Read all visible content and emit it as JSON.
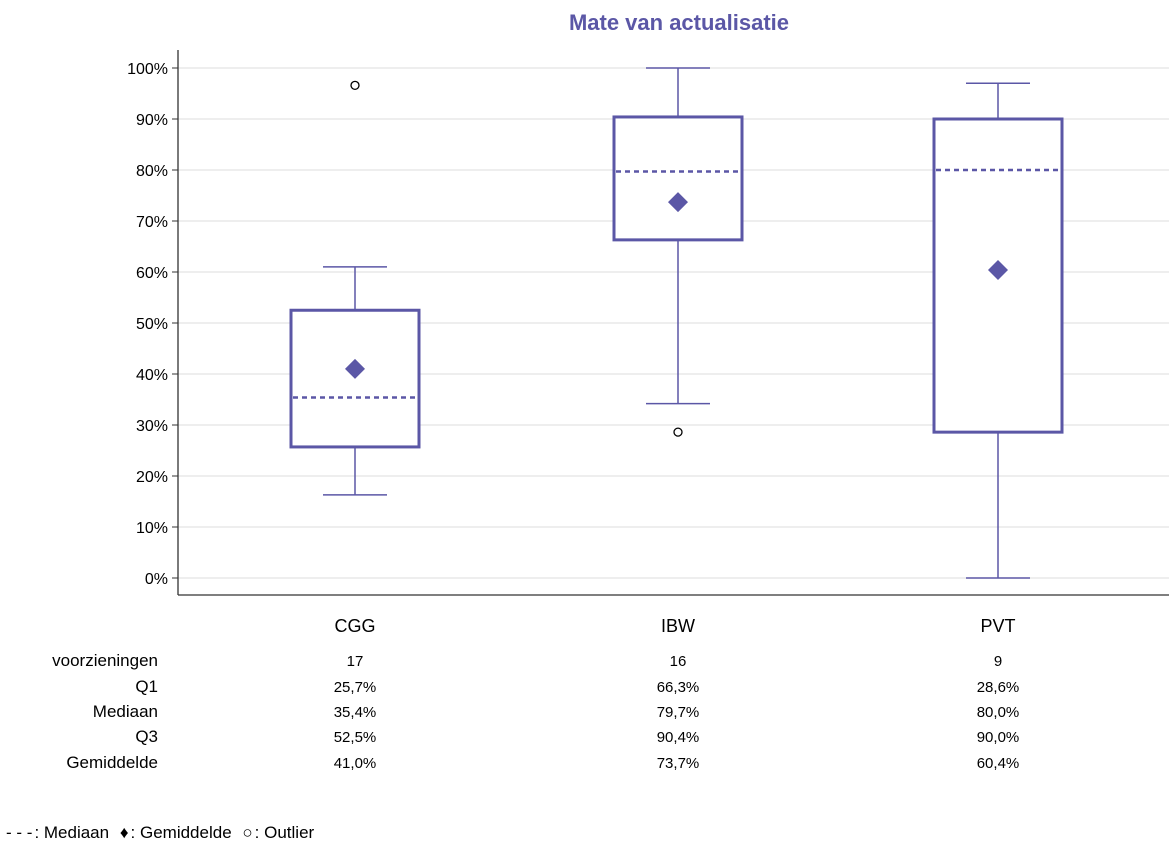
{
  "chart_data": {
    "type": "box",
    "title": "Mate van actualisatie",
    "xlabel": "",
    "ylabel": "",
    "ylim": [
      0,
      100
    ],
    "yticks": [
      "0%",
      "10%",
      "20%",
      "30%",
      "40%",
      "50%",
      "60%",
      "70%",
      "80%",
      "90%",
      "100%"
    ],
    "grid": true,
    "accent_color": "#5b57a6",
    "categories": [
      "CGG",
      "IBW",
      "PVT"
    ],
    "boxes": [
      {
        "category": "CGG",
        "whisker_low": 16.3,
        "q1": 25.7,
        "median": 35.4,
        "q3": 52.5,
        "whisker_high": 61.0,
        "mean": 41.0,
        "outliers": [
          96.6
        ]
      },
      {
        "category": "IBW",
        "whisker_low": 34.2,
        "q1": 66.3,
        "median": 79.7,
        "q3": 90.4,
        "whisker_high": 100.0,
        "mean": 73.7,
        "outliers": [
          28.6
        ]
      },
      {
        "category": "PVT",
        "whisker_low": 0.0,
        "q1": 28.6,
        "median": 80.0,
        "q3": 90.0,
        "whisker_high": 97.0,
        "mean": 60.4,
        "outliers": []
      }
    ],
    "stats_table": {
      "row_labels": [
        "voorzieningen",
        "Q1",
        "Mediaan",
        "Q3",
        "Gemiddelde"
      ],
      "columns": [
        [
          "17",
          "25,7%",
          "35,4%",
          "52,5%",
          "41,0%"
        ],
        [
          "16",
          "66,3%",
          "79,7%",
          "90,4%",
          "73,7%"
        ],
        [
          "9",
          "28,6%",
          "80,0%",
          "90,0%",
          "60,4%"
        ]
      ]
    }
  },
  "legend": {
    "median_symbol": "- - -",
    "median_label": ": Mediaan",
    "mean_symbol": "♦",
    "mean_label": ": Gemiddelde",
    "outlier_symbol": "○",
    "outlier_label": ": Outlier"
  }
}
